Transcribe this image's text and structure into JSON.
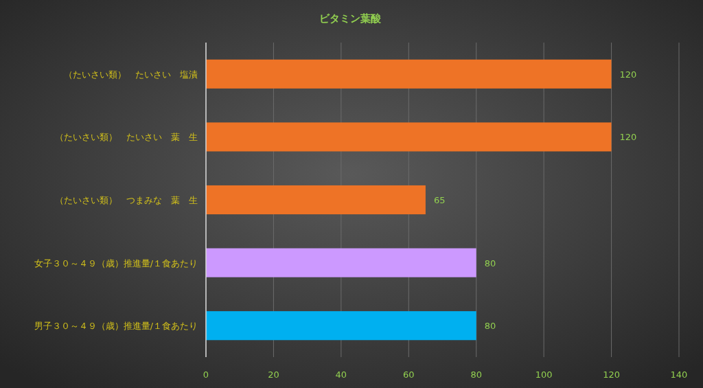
{
  "chart_data": {
    "type": "bar",
    "orientation": "horizontal",
    "title": "ビタミン葉酸",
    "categories": [
      "（たいさい類）　たいさい　塩漬",
      "（たいさい類）　たいさい　葉　生",
      "（たいさい類）　つまみな　葉　生",
      "女子３０～４９（歳）推進量/１食あたり",
      "男子３０～４９（歳）推進量/１食あたり"
    ],
    "values": [
      120,
      120,
      65,
      80,
      80
    ],
    "colors": [
      "#ee7326",
      "#ee7326",
      "#ee7326",
      "#cc99ff",
      "#00b0f0"
    ],
    "xlim": [
      0,
      140
    ],
    "xticks": [
      0,
      20,
      40,
      60,
      80,
      100,
      120,
      140
    ],
    "grid": "x",
    "data_labels": true
  }
}
